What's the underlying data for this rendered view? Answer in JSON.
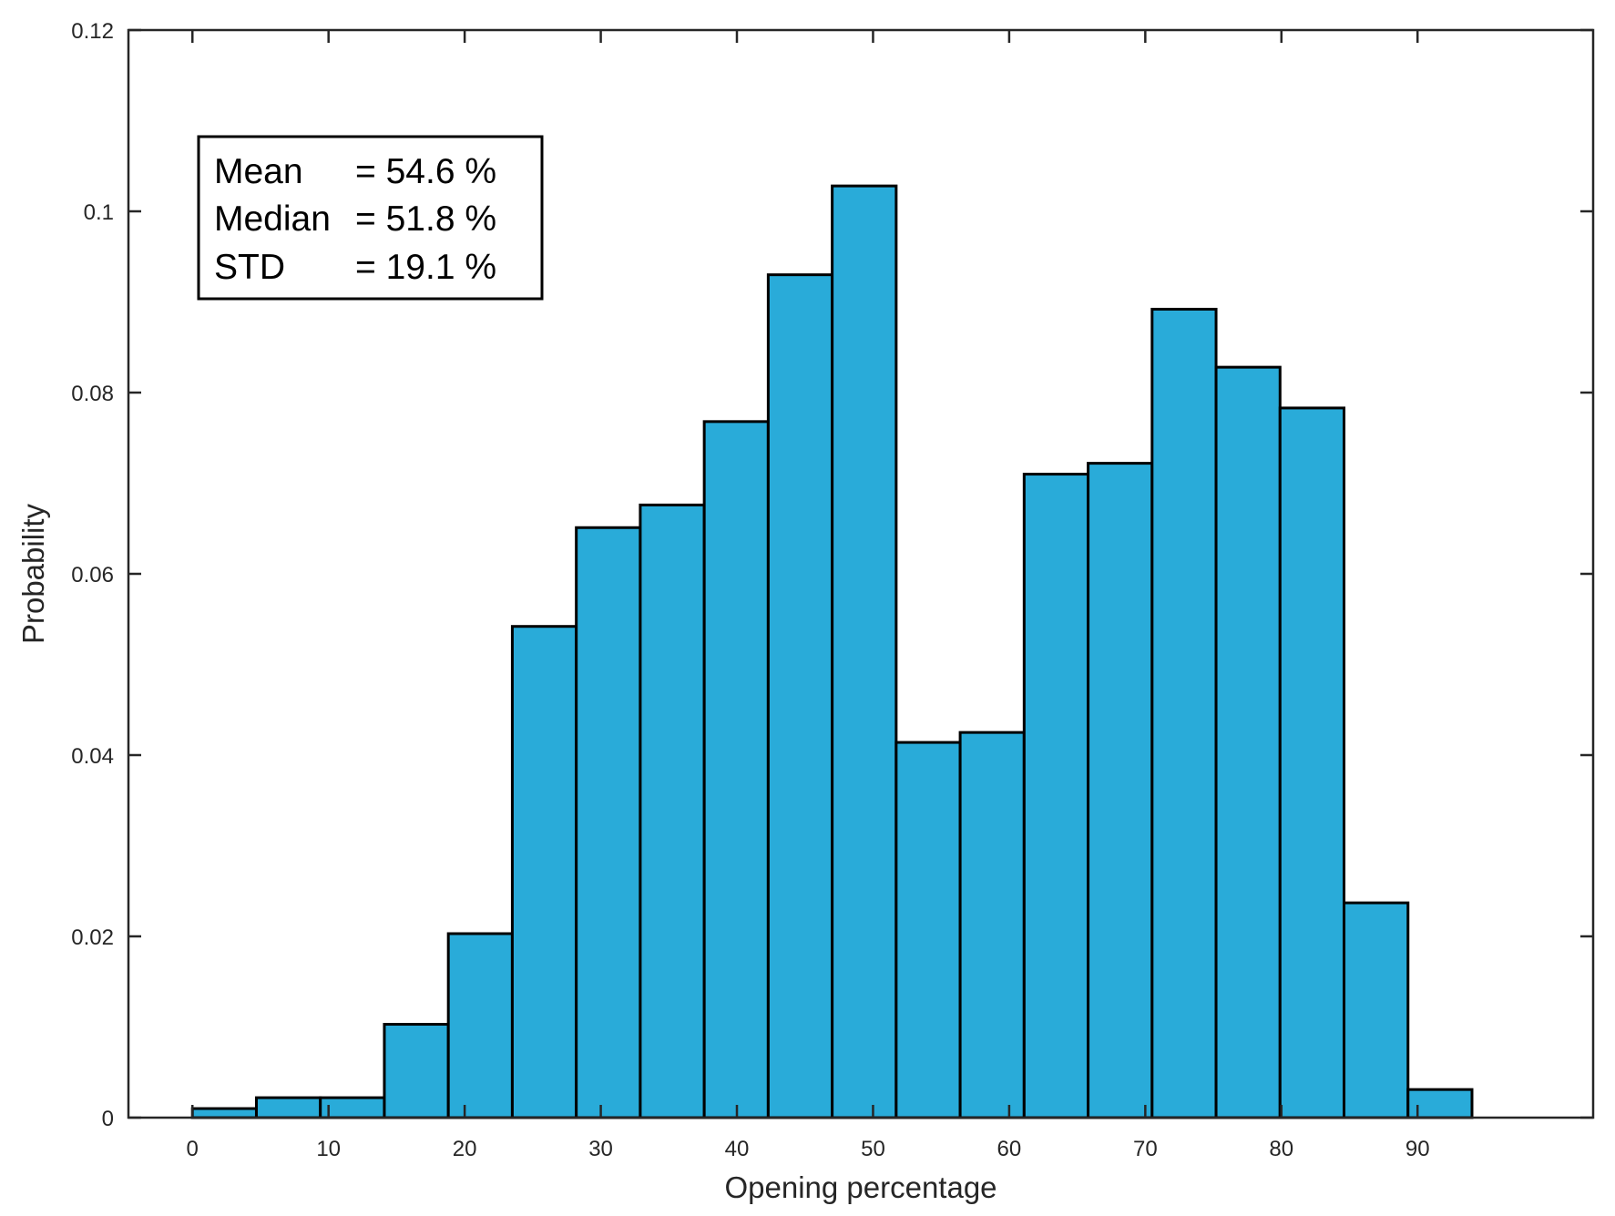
{
  "chart_data": {
    "type": "bar",
    "title": "",
    "xlabel": "Opening percentage",
    "ylabel": "Probability",
    "xlim": [
      -4.7,
      102.9
    ],
    "ylim": [
      0,
      0.12
    ],
    "xticks": [
      0,
      10,
      20,
      30,
      40,
      50,
      60,
      70,
      80,
      90
    ],
    "xtick_labels": [
      "0",
      "10",
      "20",
      "30",
      "40",
      "50",
      "60",
      "70",
      "80",
      "90"
    ],
    "yticks": [
      0,
      0.02,
      0.04,
      0.06,
      0.08,
      0.1,
      0.12
    ],
    "ytick_labels": [
      "0",
      "0.02",
      "0.04",
      "0.06",
      "0.08",
      "0.1",
      "0.12"
    ],
    "grid": false,
    "bar_color": "#29abd9",
    "edge_color": "#000000",
    "bin_edges": [
      0,
      4.7,
      9.4,
      14.1,
      18.8,
      23.5,
      28.2,
      32.9,
      37.6,
      42.3,
      47.0,
      51.7,
      56.4,
      61.1,
      65.8,
      70.5,
      75.2,
      79.9,
      84.6,
      89.3,
      94.0
    ],
    "values": [
      0.001,
      0.0022,
      0.0022,
      0.0103,
      0.0203,
      0.0542,
      0.0651,
      0.0676,
      0.0768,
      0.093,
      0.1028,
      0.0414,
      0.0425,
      0.071,
      0.0722,
      0.0892,
      0.0828,
      0.0783,
      0.0237,
      0.0031
    ],
    "annotation": {
      "lines": [
        {
          "label": "Mean",
          "value": "= 54.6 %"
        },
        {
          "label": "Median",
          "value": "= 51.8 %"
        },
        {
          "label": "STD",
          "value": "= 19.1 %"
        }
      ],
      "placement": "top-left"
    }
  }
}
